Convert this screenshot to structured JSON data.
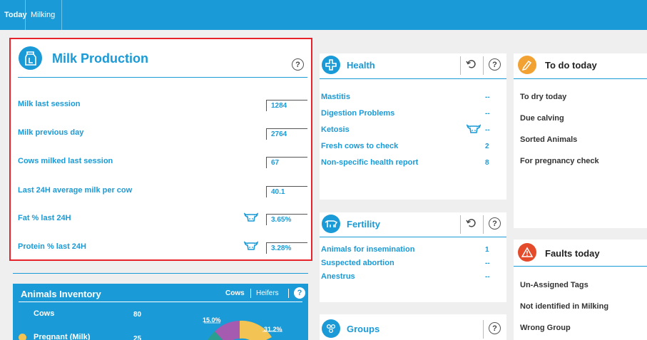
{
  "tabs": [
    {
      "label": "Today"
    },
    {
      "label": "Milking"
    }
  ],
  "milk_production": {
    "title": "Milk Production",
    "help": "?",
    "rows": [
      {
        "label": "Milk last session",
        "value": "1284"
      },
      {
        "label": "Milk previous day",
        "value": "2764"
      },
      {
        "label": "Cows milked last session",
        "value": "67"
      },
      {
        "label": "Last 24H average milk per cow",
        "value": "40.1"
      },
      {
        "label": "Fat % last 24H",
        "value": "3.65%"
      },
      {
        "label": "Protein % last 24H",
        "value": "3.28%"
      }
    ]
  },
  "health": {
    "title": "Health",
    "help": "?",
    "items": [
      {
        "label": "Mastitis",
        "value": "--"
      },
      {
        "label": "Digestion Problems",
        "value": "--"
      },
      {
        "label": "Ketosis",
        "value": "--"
      },
      {
        "label": "Fresh cows to check",
        "value": "2"
      },
      {
        "label": "Non-specific health report",
        "value": "8"
      }
    ]
  },
  "fertility": {
    "title": "Fertility",
    "help": "?",
    "items": [
      {
        "label": "Animals for insemination",
        "value": "1"
      },
      {
        "label": "Suspected abortion",
        "value": "--"
      },
      {
        "label": "Anestrus",
        "value": "--"
      }
    ]
  },
  "groups": {
    "title": "Groups",
    "help": "?"
  },
  "todo": {
    "title": "To do today",
    "items": [
      {
        "label": "To dry today"
      },
      {
        "label": "Due calving"
      },
      {
        "label": "Sorted Animals"
      },
      {
        "label": "For pregnancy check"
      }
    ]
  },
  "faults": {
    "title": "Faults today",
    "items": [
      {
        "label": "Un-Assigned Tags"
      },
      {
        "label": "Not identified in Milking"
      },
      {
        "label": "Wrong Group"
      }
    ]
  },
  "inventory": {
    "title": "Animals Inventory",
    "tab_cows": "Cows",
    "tab_heifers": "Heifers",
    "help": "?",
    "cows_label": "Cows",
    "cows_value": "80",
    "pregnant_label": "Pregnant (Milk)",
    "pregnant_value": "25",
    "pie_label_1": "15.0%",
    "pie_label_2": "31.2%"
  },
  "chart_data": {
    "type": "pie",
    "slices": [
      {
        "label": "15.0%",
        "value": 15.0,
        "color": "#a45bb0"
      },
      {
        "label": "31.2%",
        "value": 31.2,
        "color": "#f3c453"
      }
    ],
    "colors": {
      "accent": "#1a9ad6",
      "alert": "#e44b2a",
      "todo": "#f2a232"
    }
  }
}
